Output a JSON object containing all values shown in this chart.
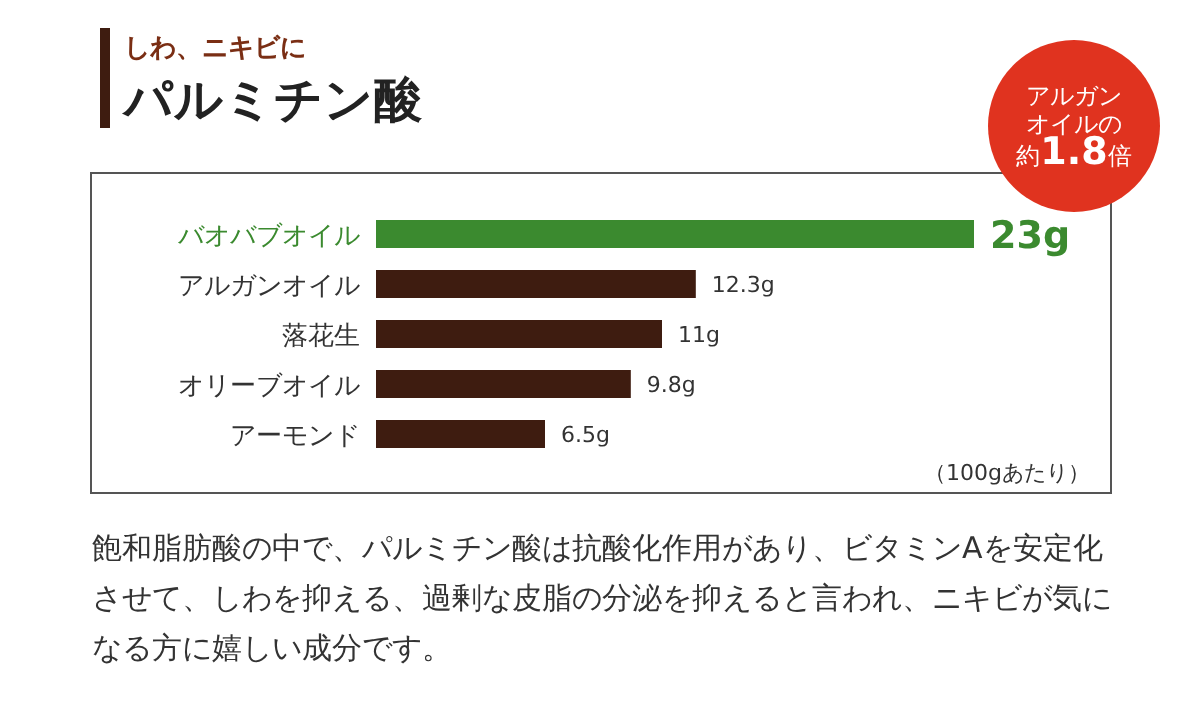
{
  "chart_data": {
    "type": "bar",
    "orientation": "horizontal",
    "subtitle": "しわ、ニキビに",
    "title": "パルミチン酸",
    "categories": [
      "バオバブオイル",
      "アルガンオイル",
      "落花生",
      "オリーブオイル",
      "アーモンド"
    ],
    "values": [
      23,
      12.3,
      11,
      9.8,
      6.5
    ],
    "value_labels": [
      "23g",
      "12.3g",
      "11g",
      "9.8g",
      "6.5g"
    ],
    "colors": [
      "#3b8a2f",
      "#3e1c10",
      "#3e1c10",
      "#3e1c10",
      "#3e1c10"
    ],
    "annotations": [
      "アルガンオイルの約**1.8**倍",
      "（100gあたり）",
      "飽和脂肪酸の中で、パルミチン酸は抗酸化作用があり、ビタミンAを安定化させて、しわを抑える、過剰な皮脂の分泌を抑えると言われ、ニキビが気になる方に嬉しい成分です。"
    ]
  }
}
